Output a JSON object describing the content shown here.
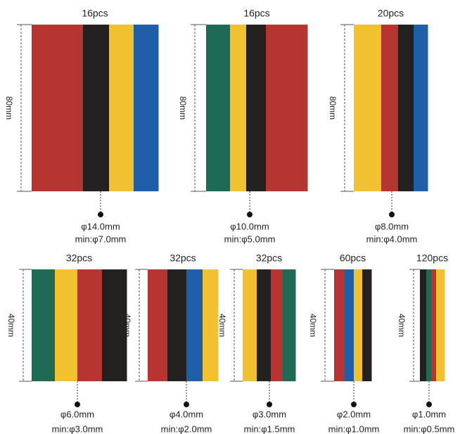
{
  "items": [
    {
      "count": "16pcs",
      "length": "80mm",
      "diameter": "φ14.0mm",
      "min": "min:φ7.0mm",
      "colors": [
        "#b63530",
        "#232120",
        "#f2c12f",
        "#1f5ea9"
      ]
    },
    {
      "count": "16pcs",
      "length": "80mm",
      "diameter": "φ10.0mm",
      "min": "min:φ5.0mm",
      "colors": [
        "#1e6a55",
        "#f2c12f",
        "#232120",
        "#b63530"
      ]
    },
    {
      "count": "20pcs",
      "length": "80mm",
      "diameter": "φ8.0mm",
      "min": "min:φ4.0mm",
      "colors": [
        "#f2c12f",
        "#b63530",
        "#232120",
        "#1f5ea9"
      ]
    },
    {
      "count": "32pcs",
      "length": "40mm",
      "diameter": "φ6.0mm",
      "min": "min:φ3.0mm",
      "colors": [
        "#1e6a55",
        "#f2c12f",
        "#b63530",
        "#232120"
      ]
    },
    {
      "count": "32pcs",
      "length": "40mm",
      "diameter": "φ4.0mm",
      "min": "min:φ2.0mm",
      "colors": [
        "#b63530",
        "#232120",
        "#1f5ea9",
        "#f2c12f"
      ]
    },
    {
      "count": "32pcs",
      "length": "40mm",
      "diameter": "φ3.0mm",
      "min": "min:φ1.5mm",
      "colors": [
        "#f2c12f",
        "#232120",
        "#b63530",
        "#1e6a55"
      ]
    },
    {
      "count": "60pcs",
      "length": "40mm",
      "diameter": "φ2.0mm",
      "min": "min:φ1.0mm",
      "colors": [
        "#b63530",
        "#1f5ea9",
        "#f2c12f",
        "#232120"
      ]
    },
    {
      "count": "120pcs",
      "length": "40mm",
      "diameter": "φ1.0mm",
      "min": "min:φ0.5mm",
      "colors": [
        "#232120",
        "#1e6a55",
        "#b63530",
        "#f2c12f"
      ]
    }
  ]
}
